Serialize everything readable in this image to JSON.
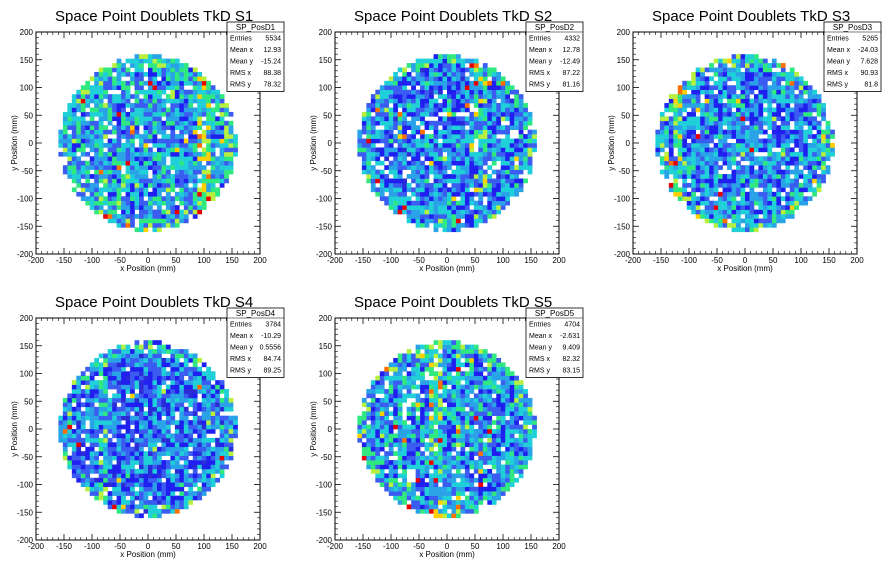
{
  "chart_data": [
    {
      "type": "heatmap",
      "title": "Space Point Doublets TkD S1",
      "xlabel": "x Position (mm)",
      "ylabel": "y Position (mm)",
      "xlim": [
        -200,
        200
      ],
      "ylim": [
        -200,
        200
      ],
      "xticks": [
        "-200",
        "-150",
        "-100",
        "-50",
        "0",
        "50",
        "100",
        "150",
        "200"
      ],
      "yticks": [
        "-200",
        "-150",
        "-100",
        "-50",
        "0",
        "50",
        "100",
        "150",
        "200"
      ],
      "coverage_radius": 160,
      "stats": {
        "name": "SP_PosD1",
        "rows": [
          {
            "label": "Entries",
            "value": "5534"
          },
          {
            "label": "Mean x",
            "value": "12.93"
          },
          {
            "label": "Mean y",
            "value": "-15.24"
          },
          {
            "label": "RMS x",
            "value": "88.38"
          },
          {
            "label": "RMS y",
            "value": "78.32"
          }
        ]
      },
      "density": {
        "base": 0.36,
        "vlines": [
          {
            "x": 100,
            "w": 10,
            "amp": 0.4
          },
          {
            "x": -80,
            "w": 8,
            "amp": 0.15
          }
        ],
        "rim": 0.15,
        "seed": 11
      }
    },
    {
      "type": "heatmap",
      "title": "Space Point Doublets TkD S2",
      "xlabel": "x Position (mm)",
      "ylabel": "y Position (mm)",
      "xlim": [
        -200,
        200
      ],
      "ylim": [
        -200,
        200
      ],
      "xticks": [
        "-200",
        "-150",
        "-100",
        "-50",
        "0",
        "50",
        "100",
        "150",
        "200"
      ],
      "yticks": [
        "-200",
        "-150",
        "-100",
        "-50",
        "0",
        "50",
        "100",
        "150",
        "200"
      ],
      "coverage_radius": 160,
      "stats": {
        "name": "SP_PosD2",
        "rows": [
          {
            "label": "Entries",
            "value": "4332"
          },
          {
            "label": "Mean x",
            "value": "12.78"
          },
          {
            "label": "Mean y",
            "value": "-12.49"
          },
          {
            "label": "RMS x",
            "value": "87.22"
          },
          {
            "label": "RMS y",
            "value": "81.16"
          }
        ]
      },
      "density": {
        "base": 0.3,
        "vlines": [
          {
            "x": 60,
            "w": 10,
            "amp": 0.2
          }
        ],
        "rim": 0.2,
        "seed": 23
      }
    },
    {
      "type": "heatmap",
      "title": "Space Point Doublets TkD S3",
      "xlabel": "x Position (mm)",
      "ylabel": "y Position (mm)",
      "xlim": [
        -200,
        200
      ],
      "ylim": [
        -200,
        200
      ],
      "xticks": [
        "-200",
        "-150",
        "-100",
        "-50",
        "0",
        "50",
        "100",
        "150",
        "200"
      ],
      "yticks": [
        "-200",
        "-150",
        "-100",
        "-50",
        "0",
        "50",
        "100",
        "150",
        "200"
      ],
      "coverage_radius": 160,
      "stats": {
        "name": "SP_PosD3",
        "rows": [
          {
            "label": "Entries",
            "value": "5265"
          },
          {
            "label": "Mean x",
            "value": "-24.03"
          },
          {
            "label": "Mean y",
            "value": "7.628"
          },
          {
            "label": "RMS x",
            "value": "90.93"
          },
          {
            "label": "RMS y",
            "value": "81.8"
          }
        ]
      },
      "density": {
        "base": 0.32,
        "vlines": [
          {
            "x": -120,
            "w": 12,
            "amp": 0.35
          }
        ],
        "rim": 0.25,
        "seed": 37
      }
    },
    {
      "type": "heatmap",
      "title": "Space Point Doublets TkD S4",
      "xlabel": "x Position (mm)",
      "ylabel": "y Position (mm)",
      "xlim": [
        -200,
        200
      ],
      "ylim": [
        -200,
        200
      ],
      "xticks": [
        "-200",
        "-150",
        "-100",
        "-50",
        "0",
        "50",
        "100",
        "150",
        "200"
      ],
      "yticks": [
        "-200",
        "-150",
        "-100",
        "-50",
        "0",
        "50",
        "100",
        "150",
        "200"
      ],
      "coverage_radius": 160,
      "stats": {
        "name": "SP_PosD4",
        "rows": [
          {
            "label": "Entries",
            "value": "3784"
          },
          {
            "label": "Mean x",
            "value": "-10.29"
          },
          {
            "label": "Mean y",
            "value": "0.5556"
          },
          {
            "label": "RMS x",
            "value": "84.74"
          },
          {
            "label": "RMS y",
            "value": "89.25"
          }
        ]
      },
      "density": {
        "base": 0.27,
        "vlines": [
          {
            "x": -80,
            "w": 10,
            "amp": 0.25
          }
        ],
        "rim": 0.2,
        "seed": 51
      }
    },
    {
      "type": "heatmap",
      "title": "Space Point Doublets TkD S5",
      "xlabel": "x Position (mm)",
      "ylabel": "y Position (mm)",
      "xlim": [
        -200,
        200
      ],
      "ylim": [
        -200,
        200
      ],
      "xticks": [
        "-200",
        "-150",
        "-100",
        "-50",
        "0",
        "50",
        "100",
        "150",
        "200"
      ],
      "yticks": [
        "-200",
        "-150",
        "-100",
        "-50",
        "0",
        "50",
        "100",
        "150",
        "200"
      ],
      "coverage_radius": 160,
      "stats": {
        "name": "SP_PosD5",
        "rows": [
          {
            "label": "Entries",
            "value": "4704"
          },
          {
            "label": "Mean x",
            "value": "-2.631"
          },
          {
            "label": "Mean y",
            "value": "9.409"
          },
          {
            "label": "RMS x",
            "value": "82.32"
          },
          {
            "label": "RMS y",
            "value": "83.15"
          }
        ]
      },
      "density": {
        "base": 0.34,
        "vlines": [
          {
            "x": -20,
            "w": 10,
            "amp": 0.3
          },
          {
            "x": 20,
            "w": 8,
            "amp": 0.25
          }
        ],
        "rim": 0.15,
        "seed": 67
      }
    }
  ],
  "palette": [
    "#2b2bd8",
    "#1f1ff0",
    "#3b5cf0",
    "#2aa2e8",
    "#20d0d8",
    "#30e880",
    "#b8f040",
    "#ffd000",
    "#ff7000",
    "#e80000"
  ],
  "grid": false
}
